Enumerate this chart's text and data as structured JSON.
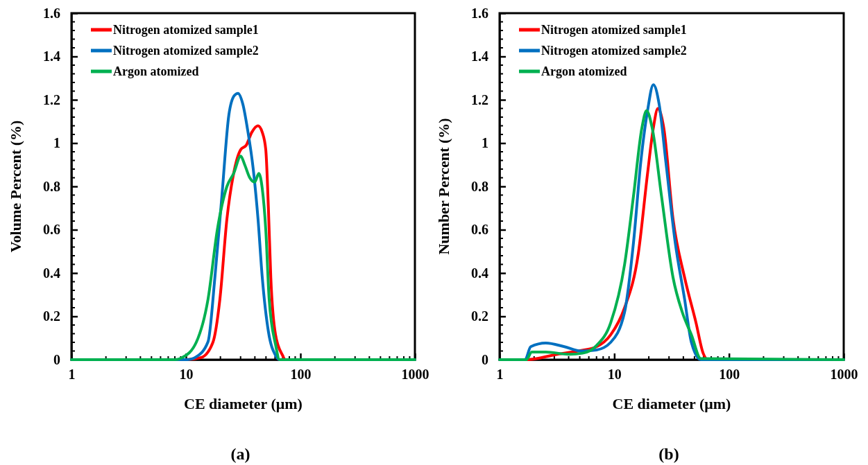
{
  "chart_data": [
    {
      "type": "line",
      "xlabel": "CE diameter (μm)",
      "ylabel": "Volume Percent (%)",
      "log": "x",
      "xlim": [
        1,
        1000
      ],
      "xticks": [
        1,
        10,
        100,
        1000
      ],
      "ylim": [
        0,
        1.6
      ],
      "yticks": [
        0,
        0.2,
        0.4,
        0.6,
        0.8,
        1,
        1.2,
        1.4,
        1.6
      ],
      "legend": "top left",
      "grid": false,
      "annotations": [
        "(a)"
      ],
      "series": [
        {
          "name": "Nitrogen atomized sample1",
          "color": "#ff0000",
          "x": [
            1,
            10,
            13.6,
            17.2,
            19.8,
            22.8,
            26.1,
            30.1,
            33.6,
            37.6,
            42.6,
            46.4,
            49.8,
            52.5,
            55.1,
            60.6,
            69.8,
            73.5,
            1000
          ],
          "values": [
            0,
            0,
            0.01,
            0.08,
            0.28,
            0.65,
            0.86,
            0.97,
            0.99,
            1.05,
            1.08,
            1.05,
            0.97,
            0.7,
            0.38,
            0.115,
            0.02,
            0,
            0
          ]
        },
        {
          "name": "Nitrogen atomized sample2",
          "color": "#0070c0",
          "x": [
            1,
            10.3,
            12.3,
            15.6,
            17.9,
            20.6,
            23.7,
            26.5,
            28.5,
            31.4,
            34.6,
            38.7,
            42.6,
            46.4,
            52.5,
            60.6,
            65.8,
            1000
          ],
          "values": [
            0,
            0,
            0.013,
            0.083,
            0.38,
            0.755,
            1.13,
            1.22,
            1.23,
            1.18,
            1.06,
            0.88,
            0.65,
            0.38,
            0.13,
            0.02,
            0,
            0
          ]
        },
        {
          "name": "Argon atomized",
          "color": "#00b050",
          "x": [
            1,
            8,
            9.3,
            12.3,
            15.6,
            18.8,
            22.8,
            26.1,
            30.1,
            32.6,
            36.1,
            39.9,
            43.3,
            46.4,
            49.8,
            53.3,
            60.6,
            65.8,
            1000
          ],
          "values": [
            0,
            0,
            0.01,
            0.08,
            0.28,
            0.6,
            0.8,
            0.86,
            0.94,
            0.9,
            0.84,
            0.82,
            0.86,
            0.79,
            0.6,
            0.28,
            0.07,
            0,
            0
          ]
        }
      ]
    },
    {
      "type": "line",
      "xlabel": "CE diameter (μm)",
      "ylabel": "Number Percent (%)",
      "log": "x",
      "xlim": [
        1,
        1000
      ],
      "xticks": [
        1,
        10,
        100,
        1000
      ],
      "ylim": [
        0,
        1.6
      ],
      "yticks": [
        0,
        0.2,
        0.4,
        0.6,
        0.8,
        1,
        1.2,
        1.4,
        1.6
      ],
      "legend": "top left",
      "grid": false,
      "annotations": [
        "(b)"
      ],
      "series": [
        {
          "name": "Nitrogen atomized sample1",
          "color": "#ff0000",
          "x": [
            1,
            1.71,
            3.19,
            4.85,
            7,
            9.3,
            12.3,
            16.2,
            19.5,
            21.9,
            24,
            27,
            32.5,
            41,
            51.6,
            59.5,
            65.3,
            1000
          ],
          "values": [
            0,
            0,
            0.025,
            0.04,
            0.06,
            0.115,
            0.24,
            0.49,
            0.86,
            1.07,
            1.16,
            1.07,
            0.65,
            0.38,
            0.17,
            0.03,
            0,
            0
          ]
        },
        {
          "name": "Nitrogen atomized sample2",
          "color": "#0070c0",
          "x": [
            1,
            1.67,
            1.87,
            2.53,
            3.67,
            5.08,
            7,
            9.3,
            12.3,
            14.7,
            17,
            19.5,
            21.9,
            24.6,
            28.2,
            34,
            41,
            47,
            56.8,
            1000
          ],
          "values": [
            0,
            0,
            0.06,
            0.077,
            0.06,
            0.04,
            0.045,
            0.08,
            0.22,
            0.54,
            0.91,
            1.15,
            1.27,
            1.18,
            0.91,
            0.54,
            0.28,
            0.08,
            0,
            0
          ]
        },
        {
          "name": "Argon atomized",
          "color": "#00b050",
          "x": [
            1,
            1.71,
            1.91,
            2.53,
            4.03,
            5.3,
            7,
            9.3,
            12.3,
            14.7,
            17.4,
            19.1,
            21.4,
            25.8,
            32.5,
            39.1,
            47,
            56.8,
            1000
          ],
          "values": [
            0,
            0,
            0.035,
            0.035,
            0.025,
            0.03,
            0.065,
            0.17,
            0.44,
            0.755,
            1.07,
            1.15,
            1.07,
            0.755,
            0.38,
            0.22,
            0.115,
            0.005,
            0
          ]
        }
      ]
    }
  ]
}
